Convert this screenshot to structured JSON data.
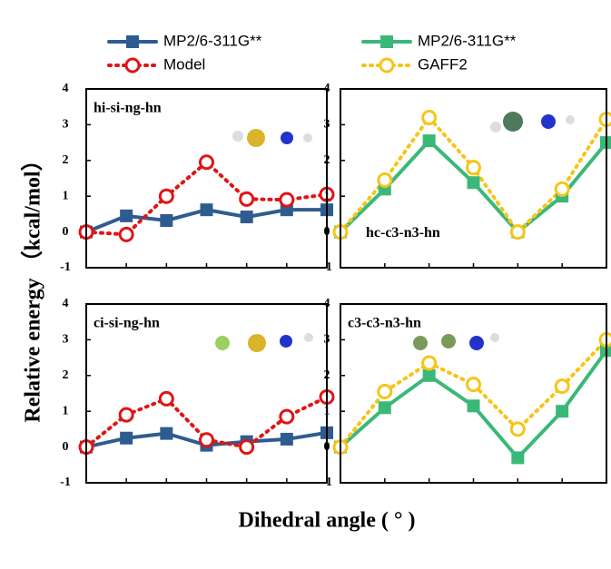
{
  "xlabel": "Dihedral angle ( ° )",
  "ylabel": "Relative energy （kcal/mol）",
  "chart_data": [
    {
      "type": "line",
      "annotation": "hi-si-ng-hn",
      "categories": [
        null,
        null,
        null,
        null,
        null,
        null,
        null
      ],
      "ylim": [
        -1,
        4
      ],
      "yticks": [
        -1,
        0,
        1,
        2,
        3,
        4
      ],
      "series": [
        {
          "name": "MP2/6-311G**",
          "color": "#2e5c8f",
          "linestyle": "solid",
          "marker": "square",
          "values": [
            0,
            0.45,
            0.32,
            0.62,
            0.42,
            0.62,
            0.62
          ]
        },
        {
          "name": "Model",
          "color": "#e01515",
          "linestyle": "dotted",
          "marker": "circle",
          "values": [
            0,
            -0.07,
            1.0,
            1.95,
            0.92,
            0.9,
            1.05
          ]
        }
      ]
    },
    {
      "type": "line",
      "annotation": "hc-c3-n3-hn",
      "categories": [
        null,
        null,
        null,
        null,
        null,
        null,
        null
      ],
      "ylim": [
        -1,
        4
      ],
      "yticks": [
        -1,
        0,
        1,
        2,
        3,
        4
      ],
      "series": [
        {
          "name": "MP2/6-311G**",
          "color": "#3ab878",
          "linestyle": "solid",
          "marker": "square",
          "values": [
            0,
            1.2,
            2.55,
            1.38,
            0,
            1.0,
            2.5
          ]
        },
        {
          "name": "GAFF2",
          "color": "#f5c518",
          "linestyle": "dotted",
          "marker": "circle",
          "values": [
            0,
            1.45,
            3.2,
            1.8,
            0,
            1.2,
            3.15
          ]
        }
      ]
    },
    {
      "type": "line",
      "annotation": "ci-si-ng-hn",
      "categories": [
        null,
        null,
        null,
        null,
        null,
        null,
        null
      ],
      "ylim": [
        -1,
        4
      ],
      "yticks": [
        -1,
        0,
        1,
        2,
        3,
        4
      ],
      "series": [
        {
          "color": "#2e5c8f",
          "linestyle": "solid",
          "marker": "square",
          "values": [
            0,
            0.25,
            0.38,
            0.05,
            0.15,
            0.22,
            0.4
          ]
        },
        {
          "color": "#e01515",
          "linestyle": "dotted",
          "marker": "circle",
          "values": [
            0,
            0.9,
            1.35,
            0.2,
            0.0,
            0.85,
            1.4
          ]
        }
      ]
    },
    {
      "type": "line",
      "annotation": "c3-c3-n3-hn",
      "categories": [
        null,
        null,
        null,
        null,
        null,
        null,
        null
      ],
      "ylim": [
        -1,
        4
      ],
      "yticks": [
        -1,
        0,
        1,
        2,
        3,
        4
      ],
      "series": [
        {
          "color": "#3ab878",
          "linestyle": "solid",
          "marker": "square",
          "values": [
            0,
            1.1,
            2.0,
            1.15,
            -0.3,
            1.0,
            2.7
          ]
        },
        {
          "color": "#f5c518",
          "linestyle": "dotted",
          "marker": "circle",
          "values": [
            0,
            1.55,
            2.35,
            1.75,
            0.5,
            1.7,
            3.0
          ]
        }
      ]
    }
  ]
}
